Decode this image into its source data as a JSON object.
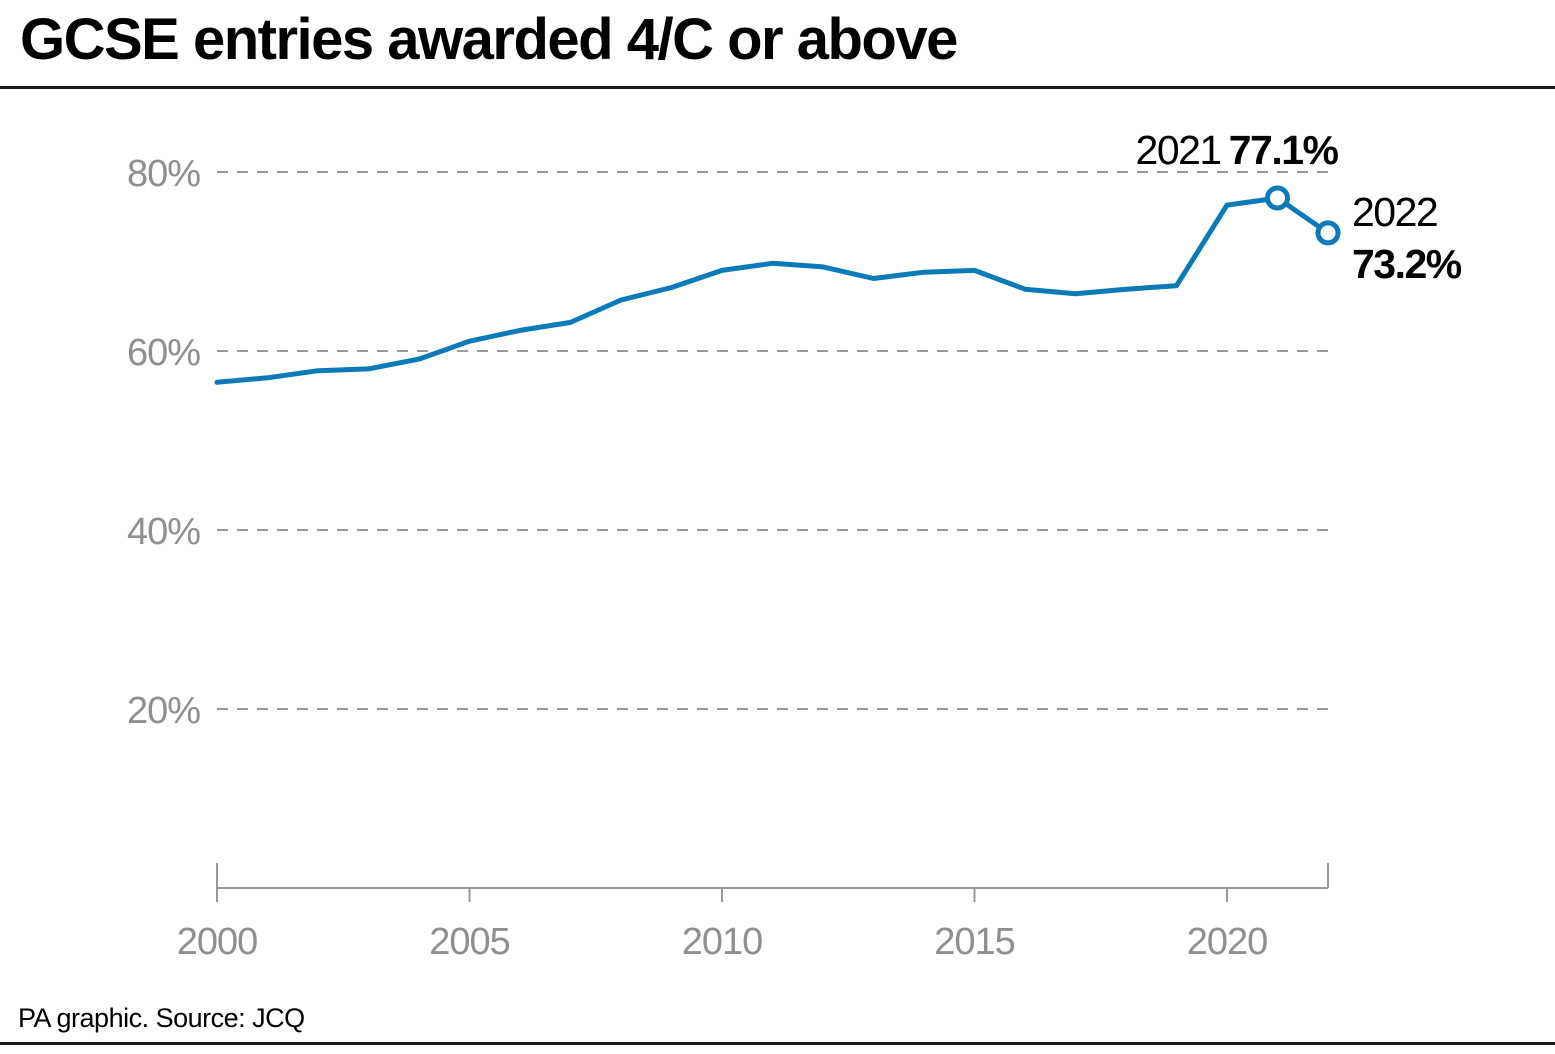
{
  "title": "GCSE entries awarded 4/C or above",
  "source": "PA graphic. Source: JCQ",
  "colors": {
    "line": "#0a7ab8",
    "grid": "#9a9a9a",
    "tick": "#8f8f8f",
    "axis": "#999999",
    "rule": "#1a1a1a"
  },
  "chart_data": {
    "type": "line",
    "title": "GCSE entries awarded 4/C or above",
    "xlabel": "",
    "ylabel": "",
    "xlim": [
      2000,
      2022
    ],
    "ylim": [
      0,
      80
    ],
    "grid": true,
    "x_ticks": [
      "2000",
      "2005",
      "2010",
      "2015",
      "2020"
    ],
    "y_ticks": [
      "20%",
      "40%",
      "60%",
      "80%"
    ],
    "x": [
      2000,
      2001,
      2002,
      2003,
      2004,
      2005,
      2006,
      2007,
      2008,
      2009,
      2010,
      2011,
      2012,
      2013,
      2014,
      2015,
      2016,
      2017,
      2018,
      2019,
      2020,
      2021,
      2022
    ],
    "series": [
      {
        "values": [
          56.5,
          57.0,
          57.8,
          58.0,
          59.1,
          61.1,
          62.3,
          63.2,
          65.7,
          67.1,
          69.0,
          69.8,
          69.4,
          68.1,
          68.8,
          69.0,
          66.9,
          66.4,
          66.9,
          67.3,
          76.3,
          77.1,
          73.2
        ]
      }
    ],
    "annotations": [
      {
        "x": 2021,
        "year": "2021",
        "value": "77.1%"
      },
      {
        "x": 2022,
        "year": "2022",
        "value": "73.2%"
      }
    ]
  }
}
